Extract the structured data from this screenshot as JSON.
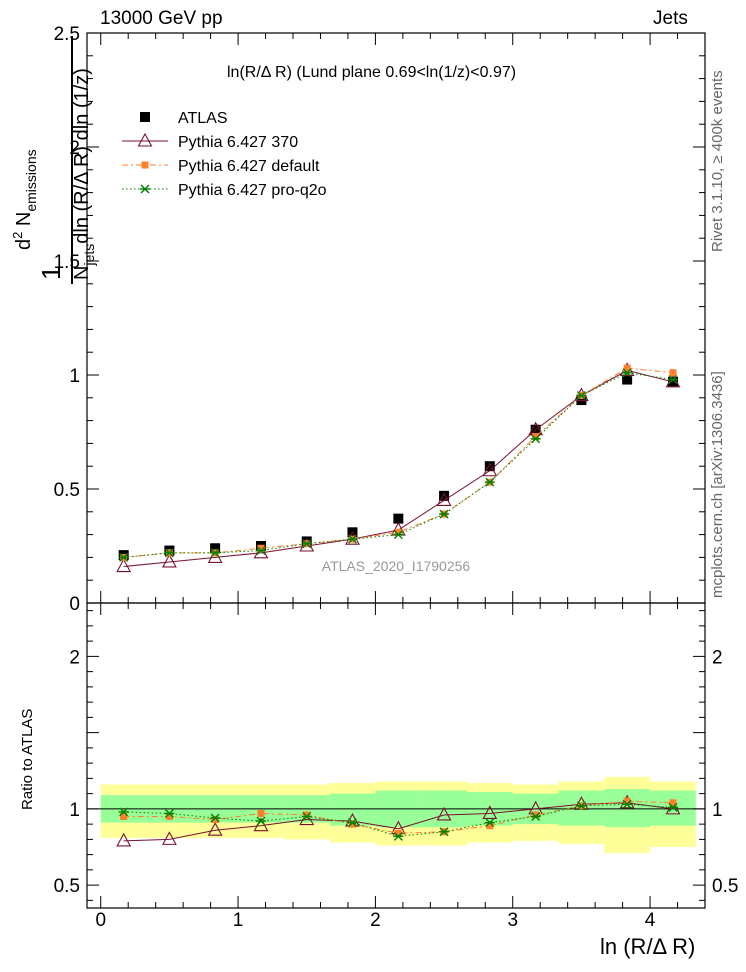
{
  "header": {
    "left": "13000 GeV pp",
    "right": "Jets"
  },
  "side_labels": {
    "rivet": "Rivet 3.1.10, ≥ 400k events",
    "mcplots": "mcplots.cern.ch [arXiv:1306.3436]"
  },
  "chart_data": {
    "type": "scatter",
    "title": "ln(R/Δ R) (Lund plane 0.69<ln(1/z)<0.97)",
    "xlabel": "ln (R/Δ R)",
    "ylabel": "1/N_jets dln(R/ΔR) dln(1/z) d²N_emissions",
    "ylabel_ratio": "Ratio to ATLAS",
    "watermark": "ATLAS_2020_I1790256",
    "xlim": [
      -0.1,
      4.4
    ],
    "ylim": [
      0,
      2.5
    ],
    "ylim_ratio": [
      0.35,
      2.35
    ],
    "x_ticks": [
      "0",
      "1",
      "2",
      "3",
      "4"
    ],
    "y_ticks": [
      "0",
      "0.5",
      "1",
      "1.5",
      "2",
      "2.5"
    ],
    "y_ticks_ratio": [
      "0.5",
      "1",
      "2"
    ],
    "bin_edges": [
      0.0,
      0.333,
      0.667,
      1.0,
      1.333,
      1.667,
      2.0,
      2.333,
      2.667,
      3.0,
      3.333,
      3.667,
      4.0,
      4.333
    ],
    "x": [
      0.167,
      0.5,
      0.833,
      1.167,
      1.5,
      1.833,
      2.167,
      2.5,
      2.833,
      3.167,
      3.5,
      3.833,
      4.167
    ],
    "series": [
      {
        "name": "ATLAS",
        "color": "#000000",
        "marker": "square",
        "values": [
          0.21,
          0.23,
          0.24,
          0.25,
          0.27,
          0.31,
          0.37,
          0.47,
          0.6,
          0.76,
          0.89,
          0.98,
          0.97
        ]
      },
      {
        "name": "Pythia 6.427 370",
        "color": "#7a1030",
        "marker": "open-triangle",
        "values": [
          0.16,
          0.18,
          0.2,
          0.22,
          0.25,
          0.28,
          0.32,
          0.45,
          0.58,
          0.76,
          0.91,
          1.02,
          0.97
        ]
      },
      {
        "name": "Pythia 6.427 default",
        "color": "#ff7f2a",
        "marker": "filled-square",
        "values": [
          0.2,
          0.22,
          0.22,
          0.24,
          0.26,
          0.28,
          0.31,
          0.39,
          0.53,
          0.73,
          0.91,
          1.03,
          1.01
        ]
      },
      {
        "name": "Pythia 6.427 pro-q2o",
        "color": "#008000",
        "marker": "star",
        "values": [
          0.2,
          0.22,
          0.22,
          0.23,
          0.26,
          0.28,
          0.3,
          0.39,
          0.53,
          0.72,
          0.91,
          1.01,
          0.98
        ]
      }
    ],
    "ratio_series": [
      {
        "name": "Pythia 6.427 370",
        "values": [
          0.79,
          0.8,
          0.86,
          0.89,
          0.93,
          0.92,
          0.87,
          0.96,
          0.97,
          1.0,
          1.03,
          1.04,
          1.0
        ]
      },
      {
        "name": "Pythia 6.427 default",
        "values": [
          0.95,
          0.95,
          0.93,
          0.97,
          0.96,
          0.9,
          0.84,
          0.85,
          0.89,
          0.96,
          1.02,
          1.05,
          1.04
        ]
      },
      {
        "name": "Pythia 6.427 pro-q2o",
        "values": [
          0.98,
          0.97,
          0.94,
          0.92,
          0.95,
          0.91,
          0.82,
          0.85,
          0.91,
          0.95,
          1.02,
          1.03,
          1.01
        ]
      }
    ],
    "uncertainty_inner": [
      [
        0.91,
        1.09
      ],
      [
        0.91,
        1.09
      ],
      [
        0.91,
        1.09
      ],
      [
        0.91,
        1.09
      ],
      [
        0.91,
        1.09
      ],
      [
        0.89,
        1.1
      ],
      [
        0.88,
        1.12
      ],
      [
        0.88,
        1.12
      ],
      [
        0.89,
        1.11
      ],
      [
        0.9,
        1.1
      ],
      [
        0.89,
        1.12
      ],
      [
        0.88,
        1.13
      ],
      [
        0.89,
        1.12
      ]
    ],
    "uncertainty_outer": [
      [
        0.81,
        1.16
      ],
      [
        0.81,
        1.16
      ],
      [
        0.81,
        1.16
      ],
      [
        0.81,
        1.16
      ],
      [
        0.8,
        1.16
      ],
      [
        0.78,
        1.17
      ],
      [
        0.76,
        1.18
      ],
      [
        0.76,
        1.18
      ],
      [
        0.78,
        1.17
      ],
      [
        0.79,
        1.16
      ],
      [
        0.77,
        1.18
      ],
      [
        0.71,
        1.21
      ],
      [
        0.75,
        1.18
      ]
    ],
    "legend_position": "top-left",
    "reference_line": 1.0,
    "colors": {
      "band_inner": "#99ff99",
      "band_outer": "#ffff99"
    }
  }
}
